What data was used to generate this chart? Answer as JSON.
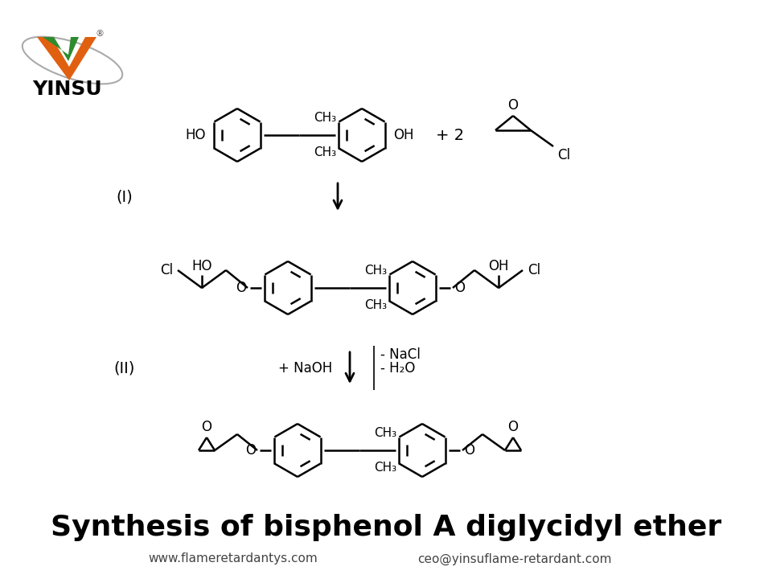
{
  "title": "Synthesis of bisphenol A diglycidyl ether",
  "bg_color": "#ffffff",
  "footer_left": "www.flameretardantys.com",
  "footer_right": "ceo@yinsuflame-retardant.com",
  "label_I": "(I)",
  "label_II": "(II)",
  "logo_green": "#2e8b2e",
  "logo_orange": "#e06010",
  "logo_dark": "#1a1a6e"
}
